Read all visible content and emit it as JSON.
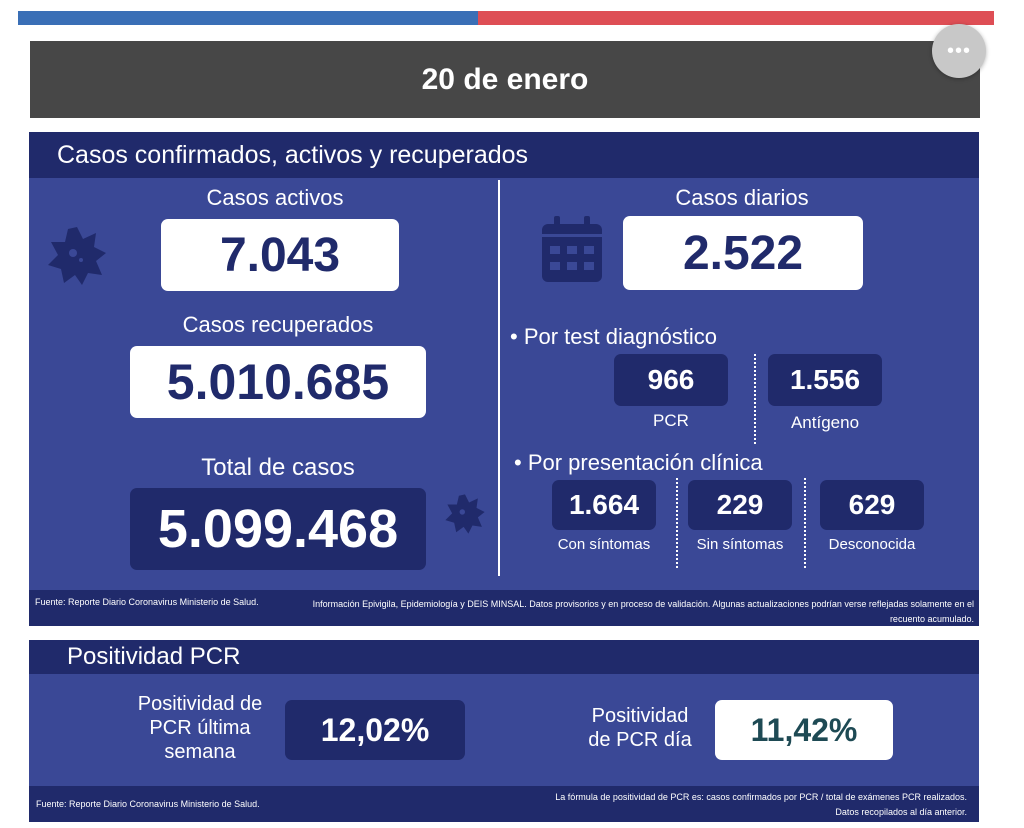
{
  "date": "20 de enero",
  "section1": {
    "title": "Casos confirmados, activos y recuperados",
    "activos": {
      "label": "Casos activos",
      "value": "7.043"
    },
    "recuperados": {
      "label": "Casos recuperados",
      "value": "5.010.685"
    },
    "total": {
      "label": "Total de casos",
      "value": "5.099.468"
    },
    "diarios": {
      "label": "Casos diarios",
      "value": "2.522"
    },
    "test": {
      "label": "• Por test diagnóstico",
      "items": [
        {
          "value": "966",
          "label": "PCR"
        },
        {
          "value": "1.556",
          "label": "Antígeno"
        }
      ]
    },
    "clinica": {
      "label": "• Por presentación clínica",
      "items": [
        {
          "value": "1.664",
          "label": "Con síntomas"
        },
        {
          "value": "229",
          "label": "Sin síntomas"
        },
        {
          "value": "629",
          "label": "Desconocida"
        }
      ]
    },
    "source": "Fuente: Reporte Diario Coronavirus Ministerio de Salud.",
    "note": "Información Epivigila, Epidemiología y DEIS MINSAL. Datos provisorios y en proceso de validación. Algunas actualizaciones podrían verse reflejadas solamente en el recuento acumulado."
  },
  "section2": {
    "title": "Positividad PCR",
    "semana": {
      "label": "Positividad de PCR última semana",
      "value": "12,02%"
    },
    "dia": {
      "label": "Positividad de PCR día",
      "value": "11,42%"
    },
    "source": "Fuente: Reporte Diario Coronavirus Ministerio de Salud.",
    "note1": "La fórmula de positividad de PCR es: casos confirmados por PCR / total de exámenes PCR realizados.",
    "note2": "Datos recopilados al día anterior."
  },
  "colors": {
    "dark": "#202a6b",
    "panel": "#3a4896",
    "blue": "#3a6fb6",
    "red": "#de4e55"
  }
}
